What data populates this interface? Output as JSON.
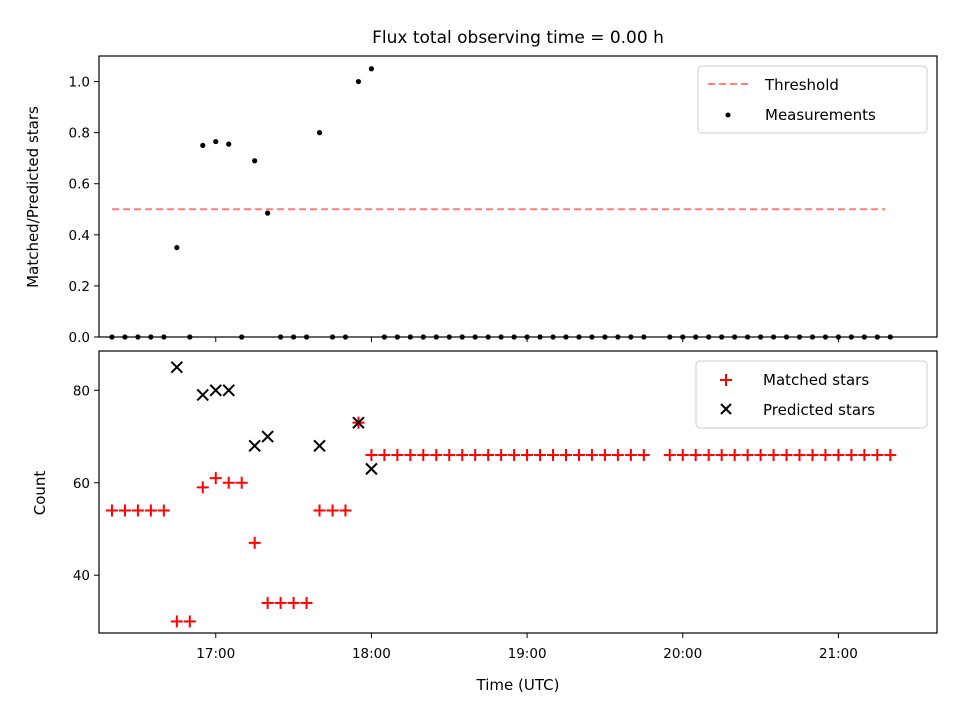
{
  "title": "Flux total observing time = 0.00 h",
  "chart_data": [
    {
      "type": "scatter",
      "ylabel": "Matched/Predicted stars",
      "xlabel": "",
      "ylim": [
        0,
        1.1
      ],
      "xlim": [
        "16:15",
        "21:38"
      ],
      "yticks": [
        0.0,
        0.2,
        0.4,
        0.6,
        0.8,
        1.0
      ],
      "ytick_labels": [
        "0.0",
        "0.2",
        "0.4",
        "0.6",
        "0.8",
        "1.0"
      ],
      "grid": false,
      "legend_position": "top-right",
      "threshold": {
        "name": "Threshold",
        "y": 0.5,
        "x_start": "16:20",
        "x_end": "21:18",
        "color": "#ff7f7f",
        "style": "dashed"
      },
      "series": [
        {
          "name": "Measurements",
          "marker": "dot",
          "color": "#000000",
          "x": [
            "16:20",
            "16:25",
            "16:30",
            "16:35",
            "16:40",
            "16:45",
            "16:50",
            "16:55",
            "17:00",
            "17:05",
            "17:10",
            "17:15",
            "17:20",
            "17:25",
            "17:30",
            "17:35",
            "17:40",
            "17:45",
            "17:50",
            "17:55",
            "18:00",
            "18:05",
            "18:10",
            "18:15",
            "18:20",
            "18:25",
            "18:30",
            "18:35",
            "18:40",
            "18:45",
            "18:50",
            "18:55",
            "19:00",
            "19:05",
            "19:10",
            "19:15",
            "19:20",
            "19:25",
            "19:30",
            "19:35",
            "19:40",
            "19:45",
            "19:55",
            "20:00",
            "20:05",
            "20:10",
            "20:15",
            "20:20",
            "20:25",
            "20:30",
            "20:35",
            "20:40",
            "20:45",
            "20:50",
            "20:55",
            "21:00",
            "21:05",
            "21:10",
            "21:15",
            "21:20"
          ],
          "y": [
            0,
            0,
            0,
            0,
            0,
            0.35,
            0,
            0.75,
            0.765,
            0.755,
            0,
            0.69,
            0.485,
            0,
            0,
            0,
            0.8,
            0,
            0,
            1.0,
            1.05,
            0,
            0,
            0,
            0,
            0,
            0,
            0,
            0,
            0,
            0,
            0,
            0,
            0,
            0,
            0,
            0,
            0,
            0,
            0,
            0,
            0,
            0,
            0,
            0,
            0,
            0,
            0,
            0,
            0,
            0,
            0,
            0,
            0,
            0,
            0,
            0,
            0,
            0,
            0
          ]
        }
      ]
    },
    {
      "type": "scatter",
      "ylabel": "Count",
      "xlabel": "Time (UTC)",
      "ylim": [
        27.5,
        88.5
      ],
      "xlim": [
        "16:15",
        "21:38"
      ],
      "yticks": [
        40,
        60,
        80
      ],
      "ytick_labels": [
        "40",
        "60",
        "80"
      ],
      "xticks": [
        "17:00",
        "18:00",
        "19:00",
        "20:00",
        "21:00"
      ],
      "xtick_labels": [
        "17:00",
        "18:00",
        "19:00",
        "20:00",
        "21:00"
      ],
      "grid": false,
      "legend_position": "top-right",
      "series": [
        {
          "name": "Matched stars",
          "marker": "plus",
          "color": "#ff0000",
          "x": [
            "16:20",
            "16:25",
            "16:30",
            "16:35",
            "16:40",
            "16:45",
            "16:50",
            "16:55",
            "17:00",
            "17:05",
            "17:10",
            "17:15",
            "17:20",
            "17:25",
            "17:30",
            "17:35",
            "17:40",
            "17:45",
            "17:50",
            "17:55",
            "18:00",
            "18:05",
            "18:10",
            "18:15",
            "18:20",
            "18:25",
            "18:30",
            "18:35",
            "18:40",
            "18:45",
            "18:50",
            "18:55",
            "19:00",
            "19:05",
            "19:10",
            "19:15",
            "19:20",
            "19:25",
            "19:30",
            "19:35",
            "19:40",
            "19:45",
            "19:55",
            "20:00",
            "20:05",
            "20:10",
            "20:15",
            "20:20",
            "20:25",
            "20:30",
            "20:35",
            "20:40",
            "20:45",
            "20:50",
            "20:55",
            "21:00",
            "21:05",
            "21:10",
            "21:15",
            "21:20"
          ],
          "y": [
            54,
            54,
            54,
            54,
            54,
            30,
            30,
            59,
            61,
            60,
            60,
            47,
            34,
            34,
            34,
            34,
            54,
            54,
            54,
            73,
            66,
            66,
            66,
            66,
            66,
            66,
            66,
            66,
            66,
            66,
            66,
            66,
            66,
            66,
            66,
            66,
            66,
            66,
            66,
            66,
            66,
            66,
            66,
            66,
            66,
            66,
            66,
            66,
            66,
            66,
            66,
            66,
            66,
            66,
            66,
            66,
            66,
            66,
            66,
            66
          ]
        },
        {
          "name": "Predicted stars",
          "marker": "x",
          "color": "#000000",
          "x": [
            "16:45",
            "16:55",
            "17:00",
            "17:05",
            "17:15",
            "17:20",
            "17:40",
            "17:55",
            "18:00"
          ],
          "y": [
            85,
            79,
            80,
            80,
            68,
            70,
            68,
            73,
            63
          ]
        }
      ]
    }
  ]
}
